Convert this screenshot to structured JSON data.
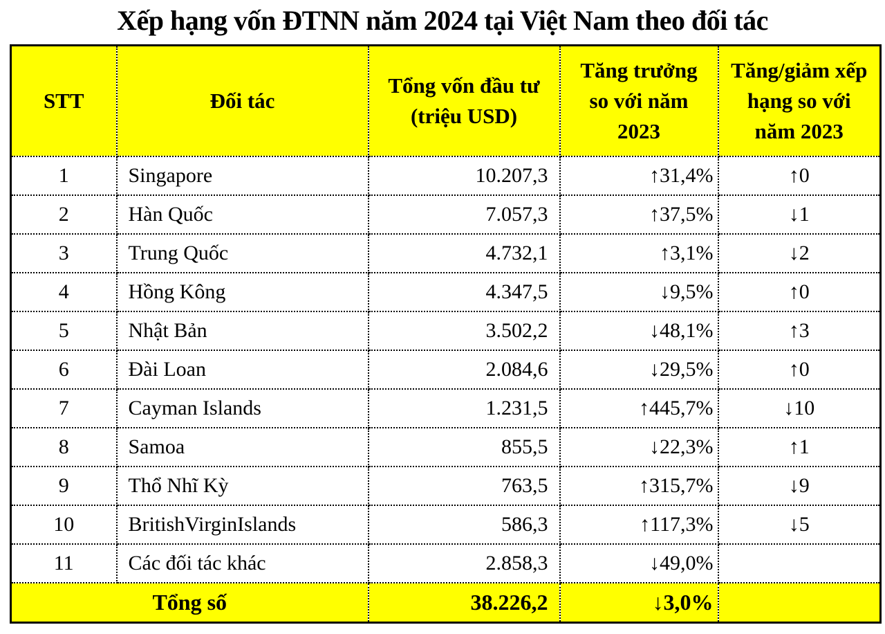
{
  "title": "Xếp hạng vốn ĐTNN năm 2024 tại Việt Nam theo đối tác",
  "chart_data": {
    "type": "table",
    "title": "Xếp hạng vốn ĐTNN năm 2024 tại Việt Nam theo đối tác",
    "columns": [
      "STT",
      "Đối tác",
      "Tổng vốn đầu tư\n(triệu USD)",
      "Tăng trưởng\nso với năm\n2023",
      "Tăng/giảm xếp\nhạng so với\nnăm 2023"
    ],
    "rows": [
      {
        "stt": "1",
        "partner": "Singapore",
        "capital": "10.207,3",
        "growth": "↑31,4%",
        "rank_change": "↑0"
      },
      {
        "stt": "2",
        "partner": "Hàn Quốc",
        "capital": "7.057,3",
        "growth": "↑37,5%",
        "rank_change": "↓1"
      },
      {
        "stt": "3",
        "partner": "Trung Quốc",
        "capital": "4.732,1",
        "growth": "↑3,1%",
        "rank_change": "↓2"
      },
      {
        "stt": "4",
        "partner": "Hồng Kông",
        "capital": "4.347,5",
        "growth": "↓9,5%",
        "rank_change": "↑0"
      },
      {
        "stt": "5",
        "partner": "Nhật Bản",
        "capital": "3.502,2",
        "growth": "↓48,1%",
        "rank_change": "↑3"
      },
      {
        "stt": "6",
        "partner": "Đài Loan",
        "capital": "2.084,6",
        "growth": "↓29,5%",
        "rank_change": "↑0"
      },
      {
        "stt": "7",
        "partner": "Cayman Islands",
        "capital": "1.231,5",
        "growth": "↑445,7%",
        "rank_change": "↓10"
      },
      {
        "stt": "8",
        "partner": "Samoa",
        "capital": "855,5",
        "growth": "↓22,3%",
        "rank_change": "↑1"
      },
      {
        "stt": "9",
        "partner": "Thổ Nhĩ Kỳ",
        "capital": "763,5",
        "growth": "↑315,7%",
        "rank_change": "↓9"
      },
      {
        "stt": "10",
        "partner": "BritishVirginIslands",
        "capital": "586,3",
        "growth": "↑117,3%",
        "rank_change": "↓5"
      },
      {
        "stt": "11",
        "partner": "Các đối tác khác",
        "capital": "2.858,3",
        "growth": "↓49,0%",
        "rank_change": ""
      }
    ],
    "total_row": {
      "label": "Tổng số",
      "capital": "38.226,2",
      "growth": "↓3,0%",
      "rank_change": ""
    },
    "layout": {
      "grid": "dotted-inner-borders",
      "outer_border": "solid"
    }
  },
  "colors": {
    "header_bg": "#ffff00",
    "total_bg": "#ffff00",
    "row_bg": "#ffffff",
    "border_color": "#000000",
    "text_color": "#000000",
    "page_bg": "#ffffff"
  }
}
